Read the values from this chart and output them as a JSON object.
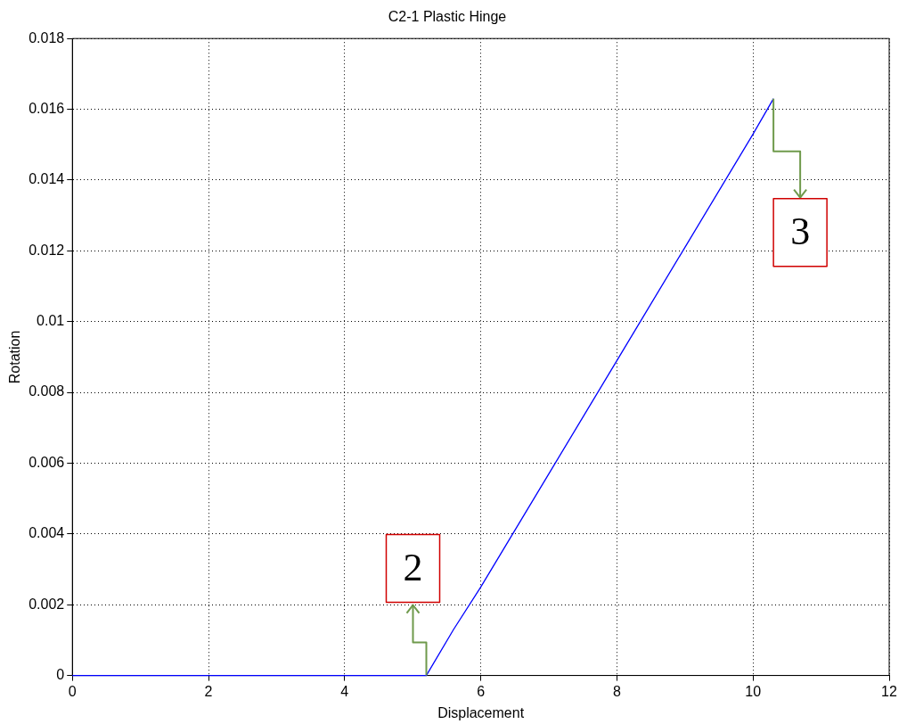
{
  "chart_data": {
    "type": "line",
    "title": "C2-1 Plastic Hinge",
    "xlabel": "Displacement",
    "ylabel": "Rotation",
    "x": [
      0,
      5.2,
      5.6,
      6.0,
      7,
      8,
      9,
      10,
      10.3
    ],
    "series": [
      {
        "color": "#0000ff",
        "values": [
          0,
          0,
          0.0013,
          0.0025,
          0.0057,
          0.0089,
          0.0121,
          0.0153,
          0.0163
        ]
      }
    ],
    "xlim": [
      0,
      12
    ],
    "xticks": [
      0,
      2,
      4,
      6,
      8,
      10,
      12
    ],
    "ylim": [
      0,
      0.018
    ],
    "yticks": [
      0,
      0.002,
      0.004,
      0.006,
      0.008,
      0.01,
      0.012,
      0.014,
      0.016,
      0.018
    ],
    "grid": true,
    "legend": false,
    "marker": "none",
    "line_style": "solid",
    "annotations": [
      {
        "text": "2",
        "x": 5.2,
        "y": 0
      },
      {
        "text": "3",
        "x": 10.3,
        "y": 0.0163
      }
    ]
  }
}
